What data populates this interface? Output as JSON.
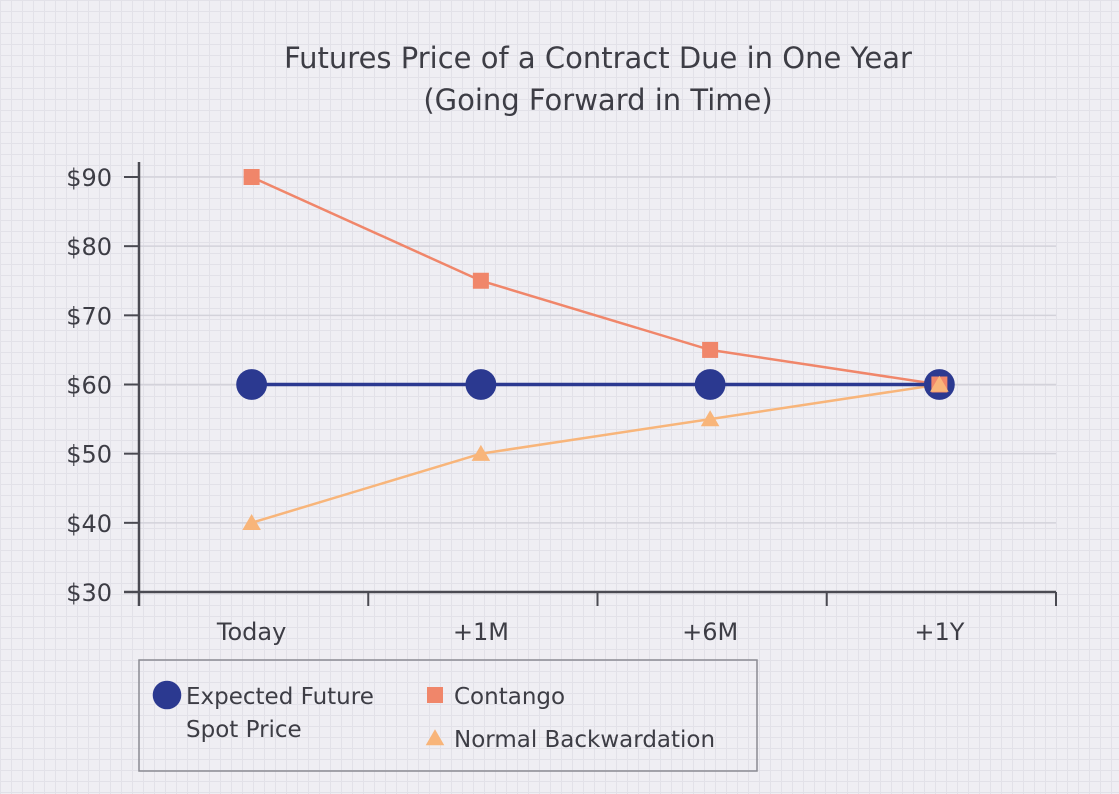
{
  "chart_data": {
    "type": "line",
    "title": "Futures Price of a Contract Due in One Year",
    "subtitle": "(Going Forward in Time)",
    "categories": [
      "Today",
      "+1M",
      "+6M",
      "+1Y"
    ],
    "ylim": [
      30,
      90
    ],
    "yticks": [
      "$30",
      "$40",
      "$50",
      "$60",
      "$70",
      "$80",
      "$90"
    ],
    "ytick_values": [
      30,
      40,
      50,
      60,
      70,
      80,
      90
    ],
    "grid": true,
    "legend_placement": "bottom-left",
    "series": [
      {
        "name": "Expected Future Spot Price",
        "legend_lines": [
          "Expected Future",
          "Spot Price"
        ],
        "marker": "circle",
        "color": "#2b3990",
        "values": [
          60,
          60,
          60,
          60
        ]
      },
      {
        "name": "Contango",
        "legend_lines": [
          "Contango"
        ],
        "marker": "square",
        "color": "#f0866a",
        "values": [
          90,
          75,
          65,
          60
        ]
      },
      {
        "name": "Normal Backwardation",
        "legend_lines": [
          "Normal Backwardation"
        ],
        "marker": "triangle",
        "color": "#f8b57a",
        "values": [
          40,
          50,
          55,
          60
        ]
      }
    ]
  }
}
